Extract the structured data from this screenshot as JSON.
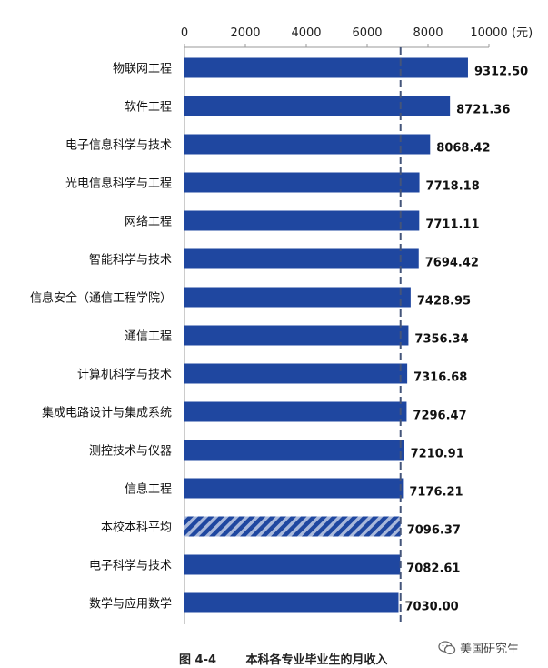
{
  "chart_data": {
    "type": "bar",
    "orientation": "horizontal",
    "categories": [
      "物联网工程",
      "软件工程",
      "电子信息科学与技术",
      "光电信息科学与工程",
      "网络工程",
      "智能科学与技术",
      "信息安全（通信工程学院）",
      "通信工程",
      "计算机科学与技术",
      "集成电路设计与集成系统",
      "测控技术与仪器",
      "信息工程",
      "本校本科平均",
      "电子科学与技术",
      "数学与应用数学"
    ],
    "values": [
      9312.5,
      8721.36,
      8068.42,
      7718.18,
      7711.11,
      7694.42,
      7428.95,
      7356.34,
      7316.68,
      7296.47,
      7210.91,
      7176.21,
      7096.37,
      7082.61,
      7030.0
    ],
    "value_labels": [
      "9312.50",
      "8721.36",
      "8068.42",
      "7718.18",
      "7711.11",
      "7694.42",
      "7428.95",
      "7356.34",
      "7316.68",
      "7296.47",
      "7210.91",
      "7176.21",
      "7096.37",
      "7082.61",
      "7030.00"
    ],
    "highlight_category": "本校本科平均",
    "reference_line": 7096.37,
    "xlim": [
      0,
      10000
    ],
    "x_ticks": [
      "0",
      "2000",
      "4000",
      "6000",
      "8000",
      "10000"
    ],
    "x_unit": "(元)",
    "axis_position": "top",
    "grid": false,
    "colors": {
      "bar": "#1f47a0",
      "highlight_stripe": "#a9b8da",
      "reference_line": "#44557a"
    }
  },
  "caption": {
    "number": "图 4-4",
    "title": "本科各专业毕业生的月收入"
  },
  "watermark": {
    "text": "美国研究生",
    "icon": "wechat-icon"
  }
}
